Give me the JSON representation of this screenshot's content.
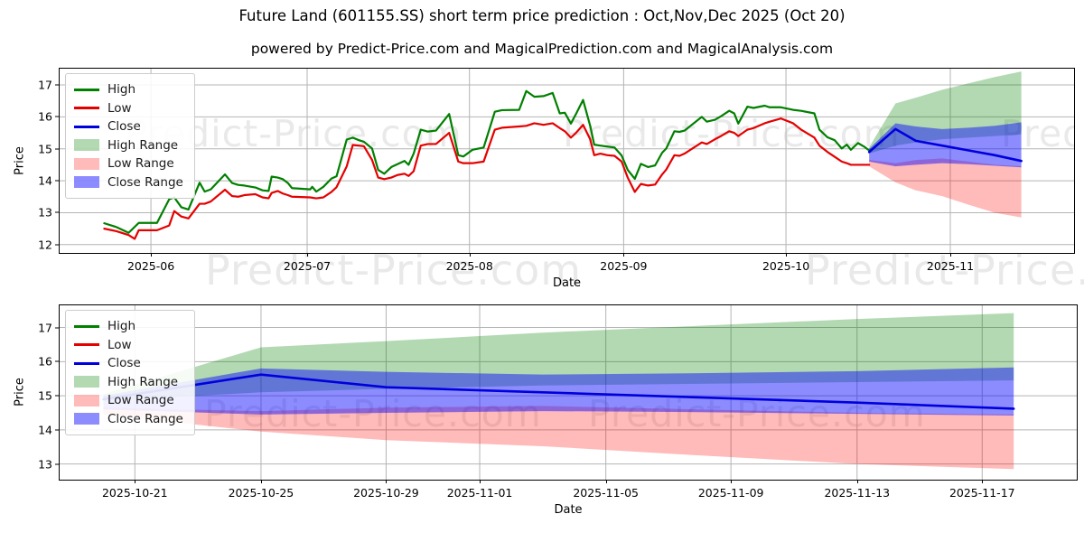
{
  "title": "Future Land (601155.SS) short term price prediction : Oct,Nov,Dec 2025 (Oct 20)",
  "subtitle": "powered by Predict-Price.com and MagicalPrediction.com and MagicalAnalysis.com",
  "watermark": "Predict-Price.com",
  "colors": {
    "high": "#008000",
    "low": "#e50000",
    "close": "#0000dd",
    "high_fill": "rgba(0,128,0,0.30)",
    "low_fill": "rgba(255,0,0,0.27)",
    "close_fill": "rgba(0,0,255,0.45)",
    "grid": "#b4b4b4"
  },
  "legend": [
    {
      "label": "High",
      "swatch": "line",
      "colorKey": "high"
    },
    {
      "label": "Low",
      "swatch": "line",
      "colorKey": "low"
    },
    {
      "label": "Close",
      "swatch": "line",
      "colorKey": "close"
    },
    {
      "label": "High Range",
      "swatch": "patch",
      "colorKey": "high_fill"
    },
    {
      "label": "Low Range",
      "swatch": "patch",
      "colorKey": "low_fill"
    },
    {
      "label": "Close Range",
      "swatch": "patch",
      "colorKey": "close_fill"
    }
  ],
  "chart_data": [
    {
      "type": "line",
      "name": "price-history-with-forecast",
      "ylabel": "Price",
      "xlabel": "Date",
      "ylim": [
        11.74,
        17.51
      ],
      "yticks": [
        12,
        13,
        14,
        15,
        16,
        17
      ],
      "xticks": [
        {
          "f": 0.09,
          "label": "2025-06"
        },
        {
          "f": 0.244,
          "label": "2025-07"
        },
        {
          "f": 0.404,
          "label": "2025-08"
        },
        {
          "f": 0.556,
          "label": "2025-09"
        },
        {
          "f": 0.716,
          "label": "2025-10"
        },
        {
          "f": 0.878,
          "label": "2025-11"
        }
      ],
      "series": {
        "high": [
          [
            0.044,
            12.67
          ],
          [
            0.056,
            12.55
          ],
          [
            0.068,
            12.37
          ],
          [
            0.078,
            12.68
          ],
          [
            0.096,
            12.68
          ],
          [
            0.108,
            13.42
          ],
          [
            0.113,
            13.48
          ],
          [
            0.12,
            13.17
          ],
          [
            0.127,
            13.1
          ],
          [
            0.138,
            13.94
          ],
          [
            0.143,
            13.66
          ],
          [
            0.149,
            13.73
          ],
          [
            0.163,
            14.2
          ],
          [
            0.17,
            13.93
          ],
          [
            0.176,
            13.87
          ],
          [
            0.182,
            13.85
          ],
          [
            0.193,
            13.79
          ],
          [
            0.2,
            13.7
          ],
          [
            0.206,
            13.68
          ],
          [
            0.209,
            14.13
          ],
          [
            0.215,
            14.1
          ],
          [
            0.22,
            14.05
          ],
          [
            0.225,
            13.93
          ],
          [
            0.229,
            13.77
          ],
          [
            0.247,
            13.73
          ],
          [
            0.249,
            13.81
          ],
          [
            0.253,
            13.66
          ],
          [
            0.26,
            13.81
          ],
          [
            0.268,
            14.07
          ],
          [
            0.273,
            14.14
          ],
          [
            0.283,
            15.29
          ],
          [
            0.289,
            15.35
          ],
          [
            0.295,
            15.27
          ],
          [
            0.3,
            15.22
          ],
          [
            0.308,
            15.01
          ],
          [
            0.314,
            14.34
          ],
          [
            0.32,
            14.22
          ],
          [
            0.327,
            14.43
          ],
          [
            0.333,
            14.52
          ],
          [
            0.34,
            14.62
          ],
          [
            0.344,
            14.5
          ],
          [
            0.349,
            14.85
          ],
          [
            0.356,
            15.6
          ],
          [
            0.363,
            15.54
          ],
          [
            0.371,
            15.57
          ],
          [
            0.384,
            16.09
          ],
          [
            0.393,
            14.8
          ],
          [
            0.398,
            14.76
          ],
          [
            0.407,
            14.97
          ],
          [
            0.418,
            15.04
          ],
          [
            0.429,
            16.16
          ],
          [
            0.436,
            16.21
          ],
          [
            0.453,
            16.22
          ],
          [
            0.46,
            16.81
          ],
          [
            0.468,
            16.63
          ],
          [
            0.477,
            16.65
          ],
          [
            0.486,
            16.75
          ],
          [
            0.493,
            16.11
          ],
          [
            0.498,
            16.13
          ],
          [
            0.504,
            15.79
          ],
          [
            0.509,
            16.09
          ],
          [
            0.516,
            16.53
          ],
          [
            0.523,
            15.72
          ],
          [
            0.527,
            15.13
          ],
          [
            0.533,
            15.1
          ],
          [
            0.54,
            15.07
          ],
          [
            0.547,
            15.04
          ],
          [
            0.554,
            14.79
          ],
          [
            0.56,
            14.34
          ],
          [
            0.567,
            14.06
          ],
          [
            0.573,
            14.53
          ],
          [
            0.58,
            14.43
          ],
          [
            0.587,
            14.48
          ],
          [
            0.594,
            14.88
          ],
          [
            0.598,
            15.01
          ],
          [
            0.606,
            15.55
          ],
          [
            0.611,
            15.53
          ],
          [
            0.616,
            15.57
          ],
          [
            0.633,
            16.0
          ],
          [
            0.638,
            15.85
          ],
          [
            0.646,
            15.91
          ],
          [
            0.652,
            16.02
          ],
          [
            0.66,
            16.19
          ],
          [
            0.665,
            16.11
          ],
          [
            0.669,
            15.79
          ],
          [
            0.678,
            16.32
          ],
          [
            0.684,
            16.28
          ],
          [
            0.695,
            16.35
          ],
          [
            0.7,
            16.3
          ],
          [
            0.711,
            16.3
          ],
          [
            0.723,
            16.22
          ],
          [
            0.731,
            16.19
          ],
          [
            0.744,
            16.11
          ],
          [
            0.749,
            15.6
          ],
          [
            0.757,
            15.36
          ],
          [
            0.764,
            15.27
          ],
          [
            0.771,
            15.01
          ],
          [
            0.776,
            15.13
          ],
          [
            0.78,
            14.97
          ],
          [
            0.787,
            15.18
          ],
          [
            0.793,
            15.07
          ],
          [
            0.798,
            14.95
          ]
        ],
        "low": [
          [
            0.044,
            12.5
          ],
          [
            0.056,
            12.42
          ],
          [
            0.068,
            12.3
          ],
          [
            0.074,
            12.18
          ],
          [
            0.078,
            12.45
          ],
          [
            0.096,
            12.45
          ],
          [
            0.108,
            12.6
          ],
          [
            0.113,
            13.05
          ],
          [
            0.12,
            12.88
          ],
          [
            0.127,
            12.82
          ],
          [
            0.138,
            13.28
          ],
          [
            0.143,
            13.28
          ],
          [
            0.149,
            13.35
          ],
          [
            0.163,
            13.72
          ],
          [
            0.17,
            13.52
          ],
          [
            0.176,
            13.5
          ],
          [
            0.182,
            13.55
          ],
          [
            0.193,
            13.58
          ],
          [
            0.2,
            13.48
          ],
          [
            0.206,
            13.45
          ],
          [
            0.209,
            13.62
          ],
          [
            0.215,
            13.68
          ],
          [
            0.22,
            13.6
          ],
          [
            0.225,
            13.55
          ],
          [
            0.229,
            13.5
          ],
          [
            0.247,
            13.48
          ],
          [
            0.253,
            13.45
          ],
          [
            0.26,
            13.48
          ],
          [
            0.268,
            13.65
          ],
          [
            0.273,
            13.8
          ],
          [
            0.283,
            14.45
          ],
          [
            0.289,
            15.12
          ],
          [
            0.295,
            15.1
          ],
          [
            0.3,
            15.08
          ],
          [
            0.308,
            14.65
          ],
          [
            0.314,
            14.1
          ],
          [
            0.32,
            14.05
          ],
          [
            0.327,
            14.1
          ],
          [
            0.333,
            14.18
          ],
          [
            0.34,
            14.22
          ],
          [
            0.344,
            14.15
          ],
          [
            0.349,
            14.3
          ],
          [
            0.356,
            15.1
          ],
          [
            0.363,
            15.15
          ],
          [
            0.371,
            15.15
          ],
          [
            0.384,
            15.5
          ],
          [
            0.393,
            14.6
          ],
          [
            0.398,
            14.55
          ],
          [
            0.407,
            14.55
          ],
          [
            0.418,
            14.6
          ],
          [
            0.429,
            15.6
          ],
          [
            0.436,
            15.66
          ],
          [
            0.453,
            15.7
          ],
          [
            0.46,
            15.72
          ],
          [
            0.468,
            15.8
          ],
          [
            0.477,
            15.75
          ],
          [
            0.486,
            15.8
          ],
          [
            0.493,
            15.65
          ],
          [
            0.498,
            15.55
          ],
          [
            0.504,
            15.35
          ],
          [
            0.509,
            15.5
          ],
          [
            0.516,
            15.75
          ],
          [
            0.523,
            15.3
          ],
          [
            0.527,
            14.8
          ],
          [
            0.533,
            14.85
          ],
          [
            0.54,
            14.8
          ],
          [
            0.547,
            14.78
          ],
          [
            0.554,
            14.6
          ],
          [
            0.56,
            14.1
          ],
          [
            0.567,
            13.65
          ],
          [
            0.573,
            13.9
          ],
          [
            0.58,
            13.85
          ],
          [
            0.587,
            13.88
          ],
          [
            0.594,
            14.2
          ],
          [
            0.598,
            14.35
          ],
          [
            0.606,
            14.8
          ],
          [
            0.611,
            14.78
          ],
          [
            0.616,
            14.85
          ],
          [
            0.633,
            15.2
          ],
          [
            0.638,
            15.15
          ],
          [
            0.646,
            15.3
          ],
          [
            0.652,
            15.4
          ],
          [
            0.66,
            15.55
          ],
          [
            0.665,
            15.5
          ],
          [
            0.669,
            15.4
          ],
          [
            0.678,
            15.6
          ],
          [
            0.684,
            15.65
          ],
          [
            0.695,
            15.8
          ],
          [
            0.7,
            15.85
          ],
          [
            0.711,
            15.95
          ],
          [
            0.723,
            15.8
          ],
          [
            0.731,
            15.6
          ],
          [
            0.744,
            15.35
          ],
          [
            0.749,
            15.1
          ],
          [
            0.757,
            14.9
          ],
          [
            0.764,
            14.75
          ],
          [
            0.771,
            14.6
          ],
          [
            0.776,
            14.55
          ],
          [
            0.78,
            14.5
          ],
          [
            0.787,
            14.5
          ],
          [
            0.793,
            14.5
          ],
          [
            0.798,
            14.5
          ]
        ]
      },
      "fan_x": [
        0.798,
        0.824,
        0.844,
        0.87,
        0.896,
        0.922,
        0.948
      ],
      "fan": {
        "dates": [
          "2025-10-20",
          "2025-10-25",
          "2025-10-29",
          "2025-11-03",
          "2025-11-08",
          "2025-11-13",
          "2025-11-18"
        ],
        "close": [
          14.9,
          15.62,
          15.25,
          15.1,
          14.95,
          14.8,
          14.62
        ],
        "high_upper": [
          15.05,
          16.42,
          16.6,
          16.85,
          17.05,
          17.25,
          17.42
        ],
        "high_lower": [
          14.85,
          15.1,
          15.2,
          15.3,
          15.35,
          15.4,
          15.45
        ],
        "close_upper": [
          15.0,
          15.8,
          15.7,
          15.62,
          15.66,
          15.72,
          15.83
        ],
        "close_lower": [
          14.6,
          14.45,
          14.5,
          14.55,
          14.52,
          14.47,
          14.42
        ],
        "low_upper": [
          14.65,
          14.55,
          14.65,
          14.7,
          14.6,
          14.5,
          14.45
        ],
        "low_lower": [
          14.45,
          13.95,
          13.7,
          13.52,
          13.25,
          13.0,
          12.85
        ]
      }
    },
    {
      "type": "line",
      "name": "forecast-detail",
      "ylabel": "Price",
      "xlabel": "Date",
      "ylim": [
        12.54,
        17.65
      ],
      "yticks": [
        13,
        14,
        15,
        16,
        17
      ],
      "xticks": [
        {
          "f": 0.074,
          "label": "2025-10-21"
        },
        {
          "f": 0.198,
          "label": "2025-10-25"
        },
        {
          "f": 0.321,
          "label": "2025-10-29"
        },
        {
          "f": 0.413,
          "label": "2025-11-01"
        },
        {
          "f": 0.537,
          "label": "2025-11-05"
        },
        {
          "f": 0.66,
          "label": "2025-11-09"
        },
        {
          "f": 0.784,
          "label": "2025-11-13"
        },
        {
          "f": 0.907,
          "label": "2025-11-17"
        }
      ],
      "fan_x": [
        0.043,
        0.198,
        0.321,
        0.475,
        0.629,
        0.784,
        0.938
      ],
      "fan": {
        "dates": [
          "2025-10-20",
          "2025-10-25",
          "2025-10-29",
          "2025-11-03",
          "2025-11-08",
          "2025-11-13",
          "2025-11-18"
        ],
        "close": [
          14.9,
          15.62,
          15.25,
          15.1,
          14.95,
          14.8,
          14.62
        ],
        "high_upper": [
          15.05,
          16.42,
          16.6,
          16.85,
          17.05,
          17.25,
          17.42
        ],
        "high_lower": [
          14.85,
          15.1,
          15.2,
          15.3,
          15.35,
          15.4,
          15.45
        ],
        "close_upper": [
          15.0,
          15.8,
          15.7,
          15.62,
          15.66,
          15.72,
          15.83
        ],
        "close_lower": [
          14.6,
          14.45,
          14.5,
          14.55,
          14.52,
          14.47,
          14.42
        ],
        "low_upper": [
          14.65,
          14.55,
          14.65,
          14.7,
          14.6,
          14.5,
          14.45
        ],
        "low_lower": [
          14.45,
          13.95,
          13.7,
          13.52,
          13.25,
          13.0,
          12.85
        ]
      }
    }
  ]
}
